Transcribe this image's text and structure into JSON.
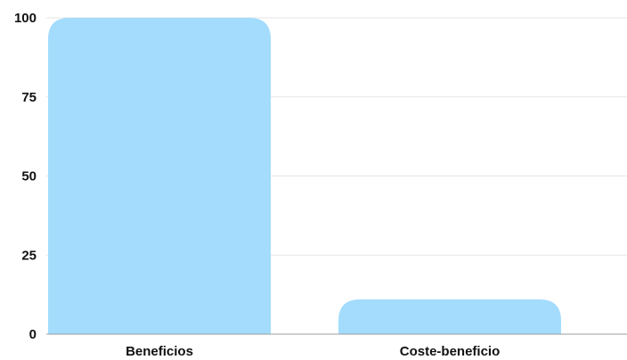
{
  "chart_data": {
    "type": "bar",
    "title": "",
    "xlabel": "",
    "ylabel": "",
    "categories": [
      "Beneficios",
      "Coste-beneficio"
    ],
    "values": [
      100,
      11
    ],
    "ylim": [
      0,
      100
    ],
    "yticks": [
      0,
      25,
      50,
      75,
      100
    ],
    "ytick_labels": [
      "0",
      "25",
      "50",
      "75",
      "100"
    ],
    "grid": true,
    "legend": "none",
    "colors": {
      "bar": "#a3dcfd",
      "grid": "#e6e6e6",
      "axis": "#9e9e9e",
      "text": "#111111"
    }
  }
}
